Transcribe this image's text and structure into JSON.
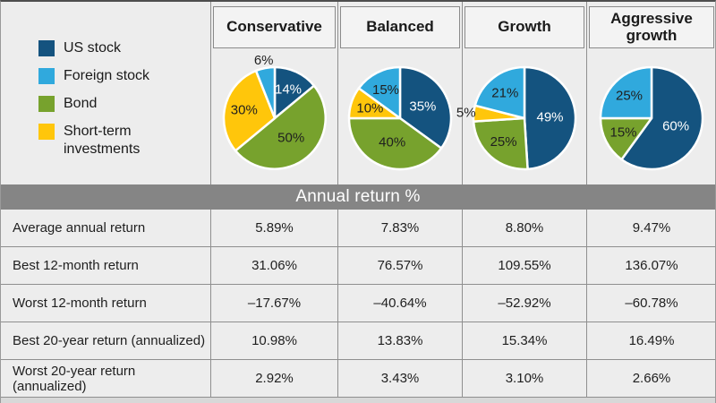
{
  "legend": {
    "items": [
      {
        "label": "US stock",
        "key": "us_stock"
      },
      {
        "label": "Foreign stock",
        "key": "foreign_stock"
      },
      {
        "label": "Bond",
        "key": "bond"
      },
      {
        "label": "Short-term investments",
        "key": "short_term"
      }
    ]
  },
  "colors": {
    "us_stock": "#14537F",
    "foreign_stock": "#30A9DD",
    "bond": "#77A22D",
    "short_term": "#FFC60B",
    "band_bg": "#858585",
    "grid_line": "#8F8F8F",
    "background": "#EDEDED"
  },
  "band": {
    "label": "Annual return %"
  },
  "chart_data": [
    {
      "type": "pie",
      "title": "Conservative",
      "slices": [
        {
          "label": "US stock",
          "key": "us_stock",
          "value": 14
        },
        {
          "label": "Bond",
          "key": "bond",
          "value": 50
        },
        {
          "label": "Short-term investments",
          "key": "short_term",
          "value": 30
        },
        {
          "label": "Foreign stock",
          "key": "foreign_stock",
          "value": 6
        }
      ]
    },
    {
      "type": "pie",
      "title": "Balanced",
      "slices": [
        {
          "label": "US stock",
          "key": "us_stock",
          "value": 35
        },
        {
          "label": "Bond",
          "key": "bond",
          "value": 40
        },
        {
          "label": "Short-term investments",
          "key": "short_term",
          "value": 10
        },
        {
          "label": "Foreign stock",
          "key": "foreign_stock",
          "value": 15
        }
      ]
    },
    {
      "type": "pie",
      "title": "Growth",
      "slices": [
        {
          "label": "US stock",
          "key": "us_stock",
          "value": 49
        },
        {
          "label": "Bond",
          "key": "bond",
          "value": 25
        },
        {
          "label": "Short-term investments",
          "key": "short_term",
          "value": 5
        },
        {
          "label": "Foreign stock",
          "key": "foreign_stock",
          "value": 21
        }
      ]
    },
    {
      "type": "pie",
      "title": "Aggressive growth",
      "slices": [
        {
          "label": "US stock",
          "key": "us_stock",
          "value": 60
        },
        {
          "label": "Bond",
          "key": "bond",
          "value": 15
        },
        {
          "label": "Foreign stock",
          "key": "foreign_stock",
          "value": 25
        }
      ]
    },
    {
      "type": "table",
      "title": "Annual return %",
      "columns": [
        "Conservative",
        "Balanced",
        "Growth",
        "Aggressive growth"
      ],
      "rows": [
        {
          "label": "Average annual return",
          "values": [
            "5.89%",
            "7.83%",
            "8.80%",
            "9.47%"
          ]
        },
        {
          "label": "Best 12-month return",
          "values": [
            "31.06%",
            "76.57%",
            "109.55%",
            "136.07%"
          ]
        },
        {
          "label": "Worst 12-month return",
          "values": [
            "–17.67%",
            "–40.64%",
            "–52.92%",
            "–60.78%"
          ]
        },
        {
          "label": "Best 20-year return (annualized)",
          "values": [
            "10.98%",
            "13.83%",
            "15.34%",
            "16.49%"
          ]
        },
        {
          "label": "Worst 20-year return (annualized)",
          "values": [
            "2.92%",
            "3.43%",
            "3.10%",
            "2.66%"
          ]
        }
      ]
    }
  ]
}
